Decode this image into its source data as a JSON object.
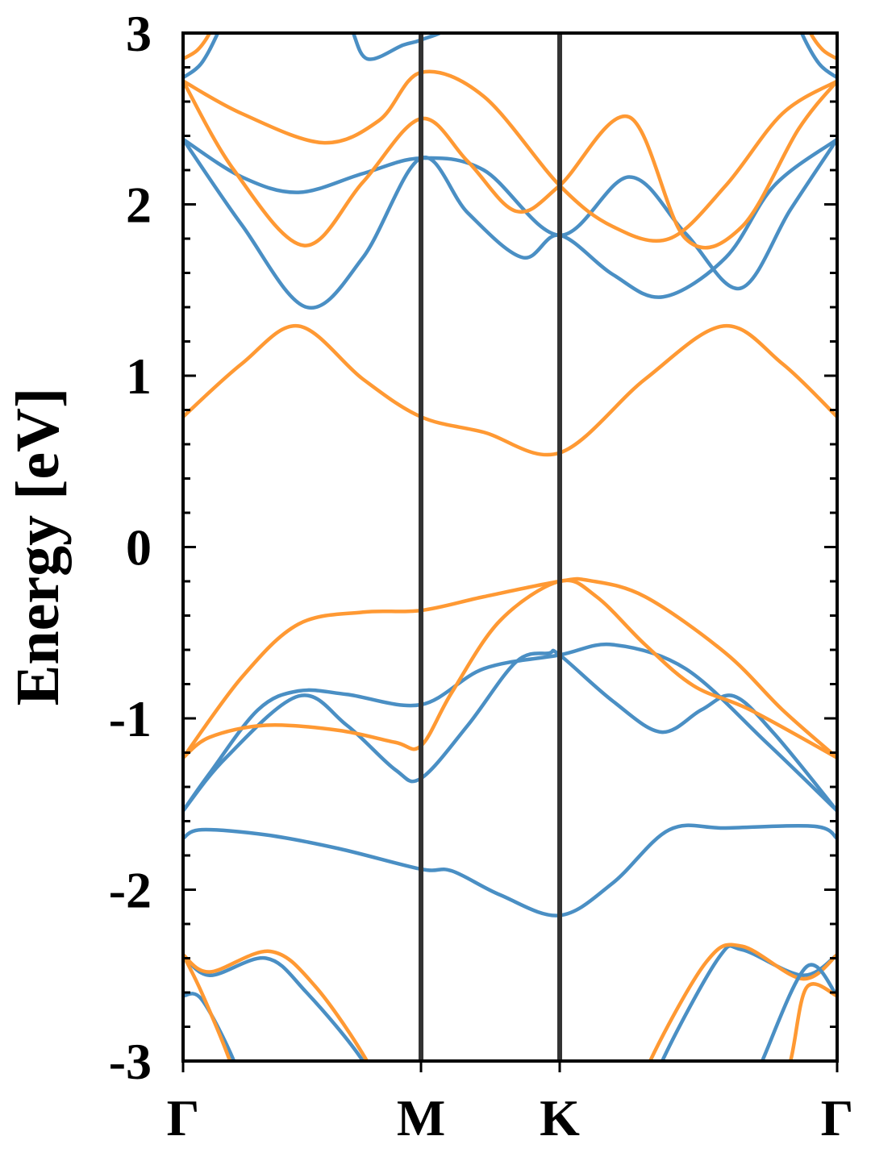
{
  "chart_data": {
    "type": "line",
    "title": "",
    "xlabel": "",
    "ylabel": "Energy [eV]",
    "ylim": [
      -3,
      3
    ],
    "yticks": [
      "3",
      "2",
      "1",
      "0",
      "-1",
      "-2",
      "-3"
    ],
    "ytick_values": [
      3,
      2,
      1,
      0,
      -1,
      -2,
      -3
    ],
    "yminor_step": 0.2,
    "grid": false,
    "xlim": [
      0,
      2.749
    ],
    "kpoints": [
      {
        "label": "Γ",
        "k": 0
      },
      {
        "label": "M",
        "k": 1.0
      },
      {
        "label": "K",
        "k": 1.583
      },
      {
        "label": "Γ",
        "k": 2.749
      }
    ],
    "colors": {
      "spin_up": "#ff9933",
      "spin_down": "#4a8fc4",
      "kline": "#333333"
    },
    "series": [
      {
        "name": "blue-valence-deep-1",
        "spin": "spin_down",
        "points": [
          [
            0,
            -2.38
          ],
          [
            0.112,
            -2.5
          ],
          [
            0.349,
            -2.4
          ],
          [
            0.519,
            -2.6
          ],
          [
            0.756,
            -3.0
          ],
          [
            0.85,
            -3.3
          ]
        ]
      },
      {
        "name": "orange-valence-deep-1",
        "spin": "spin_up",
        "points": [
          [
            0,
            -2.38
          ],
          [
            0.112,
            -2.48
          ],
          [
            0.366,
            -2.36
          ],
          [
            0.553,
            -2.56
          ],
          [
            0.773,
            -3.0
          ],
          [
            0.86,
            -3.3
          ]
        ]
      },
      {
        "name": "blue-valence-deep-2",
        "spin": "spin_down",
        "points": [
          [
            0,
            -2.62
          ],
          [
            0.078,
            -2.64
          ],
          [
            0.214,
            -3.0
          ],
          [
            0.28,
            -3.3
          ]
        ]
      },
      {
        "name": "orange-valence-deep-2",
        "spin": "spin_up",
        "points": [
          [
            0,
            -2.38
          ],
          [
            0.078,
            -2.6
          ],
          [
            0.197,
            -3.0
          ],
          [
            0.26,
            -3.3
          ]
        ]
      },
      {
        "name": "blue-valence-deep-3",
        "spin": "spin_down",
        "points": [
          [
            1.95,
            -3.3
          ],
          [
            2.014,
            -3.0
          ],
          [
            2.25,
            -2.4
          ],
          [
            2.349,
            -2.35
          ],
          [
            2.603,
            -2.5
          ],
          [
            2.749,
            -2.38
          ]
        ]
      },
      {
        "name": "orange-valence-deep-3",
        "spin": "spin_up",
        "points": [
          [
            1.9,
            -3.3
          ],
          [
            1.963,
            -3.0
          ],
          [
            2.2,
            -2.42
          ],
          [
            2.349,
            -2.33
          ],
          [
            2.603,
            -2.52
          ],
          [
            2.749,
            -2.38
          ]
        ]
      },
      {
        "name": "blue-valence-deep-4",
        "spin": "spin_down",
        "points": [
          [
            2.35,
            -3.3
          ],
          [
            2.434,
            -3.0
          ],
          [
            2.62,
            -2.45
          ],
          [
            2.749,
            -2.62
          ]
        ]
      },
      {
        "name": "orange-valence-deep-4",
        "spin": "spin_up",
        "points": [
          [
            2.48,
            -3.3
          ],
          [
            2.553,
            -3.0
          ],
          [
            2.621,
            -2.57
          ],
          [
            2.749,
            -2.62
          ]
        ]
      },
      {
        "name": "blue-valence-3",
        "spin": "spin_down",
        "points": [
          [
            0,
            -1.7
          ],
          [
            0.078,
            -1.65
          ],
          [
            0.349,
            -1.68
          ],
          [
            0.654,
            -1.76
          ],
          [
            1.0,
            -1.88
          ],
          [
            1.129,
            -1.89
          ],
          [
            1.332,
            -2.03
          ],
          [
            1.583,
            -2.15
          ],
          [
            1.807,
            -1.96
          ],
          [
            2.044,
            -1.65
          ],
          [
            2.281,
            -1.64
          ],
          [
            2.654,
            -1.63
          ],
          [
            2.749,
            -1.7
          ]
        ]
      },
      {
        "name": "blue-valence-2",
        "spin": "spin_down",
        "points": [
          [
            0,
            -1.54
          ],
          [
            0.18,
            -1.23
          ],
          [
            0.485,
            -0.87
          ],
          [
            0.688,
            -1.04
          ],
          [
            0.892,
            -1.3
          ],
          [
            1.0,
            -1.35
          ],
          [
            1.197,
            -1.04
          ],
          [
            1.4,
            -0.67
          ],
          [
            1.536,
            -0.62
          ],
          [
            1.583,
            -0.63
          ],
          [
            1.807,
            -0.9
          ],
          [
            2.01,
            -1.08
          ],
          [
            2.179,
            -0.95
          ],
          [
            2.315,
            -0.87
          ],
          [
            2.485,
            -1.09
          ],
          [
            2.749,
            -1.54
          ]
        ]
      },
      {
        "name": "blue-valence-1",
        "spin": "spin_down",
        "points": [
          [
            0,
            -1.54
          ],
          [
            0.112,
            -1.32
          ],
          [
            0.315,
            -0.95
          ],
          [
            0.485,
            -0.84
          ],
          [
            0.688,
            -0.86
          ],
          [
            1.0,
            -0.92
          ],
          [
            1.264,
            -0.71
          ],
          [
            1.583,
            -0.63
          ],
          [
            1.807,
            -0.57
          ],
          [
            2.112,
            -0.71
          ],
          [
            2.451,
            -1.14
          ],
          [
            2.749,
            -1.54
          ]
        ]
      },
      {
        "name": "orange-valence-2",
        "spin": "spin_up",
        "points": [
          [
            0,
            -1.23
          ],
          [
            0.112,
            -1.11
          ],
          [
            0.349,
            -1.04
          ],
          [
            0.654,
            -1.07
          ],
          [
            0.892,
            -1.14
          ],
          [
            1.0,
            -1.16
          ],
          [
            1.129,
            -0.85
          ],
          [
            1.332,
            -0.43
          ],
          [
            1.583,
            -0.2
          ],
          [
            1.738,
            -0.29
          ],
          [
            1.942,
            -0.57
          ],
          [
            2.146,
            -0.81
          ],
          [
            2.383,
            -0.95
          ],
          [
            2.749,
            -1.23
          ]
        ]
      },
      {
        "name": "orange-valence-1",
        "spin": "spin_up",
        "points": [
          [
            0,
            -1.23
          ],
          [
            0.247,
            -0.76
          ],
          [
            0.485,
            -0.45
          ],
          [
            0.756,
            -0.38
          ],
          [
            1.0,
            -0.37
          ],
          [
            1.264,
            -0.29
          ],
          [
            1.583,
            -0.2
          ],
          [
            1.705,
            -0.195
          ],
          [
            1.942,
            -0.29
          ],
          [
            2.281,
            -0.62
          ],
          [
            2.519,
            -0.95
          ],
          [
            2.749,
            -1.23
          ]
        ]
      },
      {
        "name": "orange-conduction-1",
        "spin": "spin_up",
        "points": [
          [
            0,
            0.76
          ],
          [
            0.247,
            1.07
          ],
          [
            0.485,
            1.29
          ],
          [
            0.756,
            0.98
          ],
          [
            1.0,
            0.76
          ],
          [
            1.264,
            0.67
          ],
          [
            1.583,
            0.55
          ],
          [
            1.942,
            0.98
          ],
          [
            2.271,
            1.29
          ],
          [
            2.519,
            1.07
          ],
          [
            2.749,
            0.76
          ]
        ]
      },
      {
        "name": "blue-conduction-1",
        "spin": "spin_down",
        "points": [
          [
            0,
            2.38
          ],
          [
            0.247,
            1.88
          ],
          [
            0.519,
            1.4
          ],
          [
            0.756,
            1.69
          ],
          [
            1.0,
            2.27
          ],
          [
            1.197,
            1.95
          ],
          [
            1.427,
            1.69
          ],
          [
            1.583,
            1.82
          ],
          [
            1.807,
            1.59
          ],
          [
            2.017,
            1.46
          ],
          [
            2.281,
            1.69
          ],
          [
            2.485,
            2.11
          ],
          [
            2.749,
            2.38
          ]
        ]
      },
      {
        "name": "blue-conduction-2",
        "spin": "spin_down",
        "points": [
          [
            0,
            2.38
          ],
          [
            0.247,
            2.16
          ],
          [
            0.485,
            2.07
          ],
          [
            0.756,
            2.18
          ],
          [
            1.0,
            2.27
          ],
          [
            1.264,
            2.2
          ],
          [
            1.583,
            1.82
          ],
          [
            1.875,
            2.16
          ],
          [
            2.112,
            1.83
          ],
          [
            2.342,
            1.51
          ],
          [
            2.553,
            1.97
          ],
          [
            2.749,
            2.38
          ]
        ]
      },
      {
        "name": "orange-conduction-2",
        "spin": "spin_up",
        "points": [
          [
            0,
            2.72
          ],
          [
            0.214,
            2.2
          ],
          [
            0.508,
            1.76
          ],
          [
            0.756,
            2.13
          ],
          [
            1.0,
            2.5
          ],
          [
            1.197,
            2.25
          ],
          [
            1.4,
            1.96
          ],
          [
            1.583,
            2.11
          ],
          [
            1.875,
            2.51
          ],
          [
            2.112,
            1.8
          ],
          [
            2.349,
            1.87
          ],
          [
            2.587,
            2.44
          ],
          [
            2.749,
            2.72
          ]
        ]
      },
      {
        "name": "orange-conduction-3",
        "spin": "spin_up",
        "points": [
          [
            0,
            2.72
          ],
          [
            0.247,
            2.53
          ],
          [
            0.587,
            2.36
          ],
          [
            0.824,
            2.49
          ],
          [
            1.0,
            2.77
          ],
          [
            1.264,
            2.63
          ],
          [
            1.583,
            2.11
          ],
          [
            1.807,
            1.87
          ],
          [
            2.044,
            1.8
          ],
          [
            2.281,
            2.11
          ],
          [
            2.519,
            2.53
          ],
          [
            2.749,
            2.72
          ]
        ]
      },
      {
        "name": "blue-conduction-top-1",
        "spin": "spin_down",
        "points": [
          [
            0,
            2.74
          ],
          [
            0.075,
            2.82
          ],
          [
            0.146,
            3.0
          ],
          [
            0.22,
            3.25
          ]
        ]
      },
      {
        "name": "blue-conduction-top-2",
        "spin": "spin_down",
        "points": [
          [
            2.53,
            3.25
          ],
          [
            2.6,
            3.0
          ],
          [
            2.674,
            2.82
          ],
          [
            2.749,
            2.74
          ]
        ]
      },
      {
        "name": "orange-conduction-top-1",
        "spin": "spin_up",
        "points": [
          [
            0,
            2.85
          ],
          [
            0.06,
            2.9
          ],
          [
            0.112,
            3.0
          ],
          [
            0.18,
            3.2
          ]
        ]
      },
      {
        "name": "orange-conduction-top-2",
        "spin": "spin_up",
        "points": [
          [
            2.57,
            3.2
          ],
          [
            2.637,
            3.0
          ],
          [
            2.69,
            2.9
          ],
          [
            2.749,
            2.85
          ]
        ]
      },
      {
        "name": "blue-conduction-top-3",
        "spin": "spin_down",
        "points": [
          [
            0.6,
            3.3
          ],
          [
            0.7,
            3.05
          ],
          [
            0.773,
            2.85
          ],
          [
            0.925,
            2.93
          ],
          [
            1.0,
            2.96
          ],
          [
            1.129,
            3.05
          ],
          [
            1.2,
            3.3
          ]
        ]
      }
    ]
  }
}
